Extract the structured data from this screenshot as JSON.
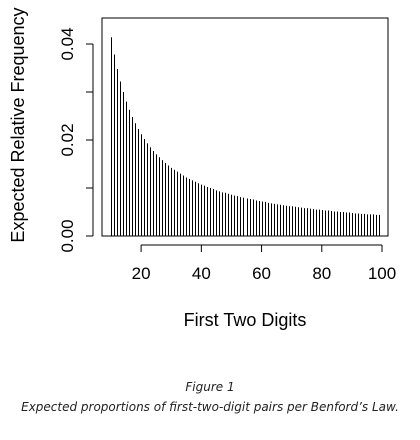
{
  "chart_data": {
    "type": "bar",
    "xlabel": "First Two Digits",
    "ylabel": "Expected Relative Frequency",
    "xlim": [
      10,
      99
    ],
    "ylim": [
      0,
      0.042
    ],
    "xticks": [
      20,
      40,
      60,
      80,
      100
    ],
    "xtick_labels": [
      "20",
      "40",
      "60",
      "80",
      "100"
    ],
    "yticks": [
      0.0,
      0.01,
      0.02,
      0.03,
      0.04
    ],
    "ytick_labels": [
      "0.00",
      "",
      "0.02",
      "",
      "0.04"
    ],
    "grid": false,
    "x": [
      10,
      11,
      12,
      13,
      14,
      15,
      16,
      17,
      18,
      19,
      20,
      21,
      22,
      23,
      24,
      25,
      26,
      27,
      28,
      29,
      30,
      31,
      32,
      33,
      34,
      35,
      36,
      37,
      38,
      39,
      40,
      41,
      42,
      43,
      44,
      45,
      46,
      47,
      48,
      49,
      50,
      51,
      52,
      53,
      54,
      55,
      56,
      57,
      58,
      59,
      60,
      61,
      62,
      63,
      64,
      65,
      66,
      67,
      68,
      69,
      70,
      71,
      72,
      73,
      74,
      75,
      76,
      77,
      78,
      79,
      80,
      81,
      82,
      83,
      84,
      85,
      86,
      87,
      88,
      89,
      90,
      91,
      92,
      93,
      94,
      95,
      96,
      97,
      98,
      99
    ],
    "values": [
      0.0414,
      0.0378,
      0.0348,
      0.0322,
      0.03,
      0.028,
      0.0263,
      0.0248,
      0.0235,
      0.0223,
      0.0212,
      0.0202,
      0.0193,
      0.0185,
      0.0177,
      0.017,
      0.0164,
      0.0158,
      0.0152,
      0.0147,
      0.0142,
      0.0138,
      0.0134,
      0.013,
      0.0126,
      0.0122,
      0.0119,
      0.0116,
      0.0113,
      0.011,
      0.0107,
      0.0105,
      0.0102,
      0.01,
      0.0098,
      0.0095,
      0.0093,
      0.0091,
      0.009,
      0.0088,
      0.0086,
      0.0084,
      0.0083,
      0.0081,
      0.008,
      0.0078,
      0.0077,
      0.0076,
      0.0074,
      0.0073,
      0.0072,
      0.0071,
      0.0069,
      0.0068,
      0.0067,
      0.0066,
      0.0065,
      0.0064,
      0.0063,
      0.0062,
      0.0062,
      0.0061,
      0.006,
      0.0059,
      0.0058,
      0.0058,
      0.0057,
      0.0056,
      0.0055,
      0.0055,
      0.0054,
      0.0053,
      0.0053,
      0.0052,
      0.0051,
      0.0051,
      0.005,
      0.005,
      0.0049,
      0.0049,
      0.0048,
      0.0047,
      0.0047,
      0.0046,
      0.0046,
      0.0045,
      0.0045,
      0.0045,
      0.0044,
      0.0044
    ],
    "line_color": "#000000"
  },
  "caption": {
    "figure_number": "Figure 1",
    "text": "Expected proportions of first-two-digit pairs per Benford’s Law."
  }
}
